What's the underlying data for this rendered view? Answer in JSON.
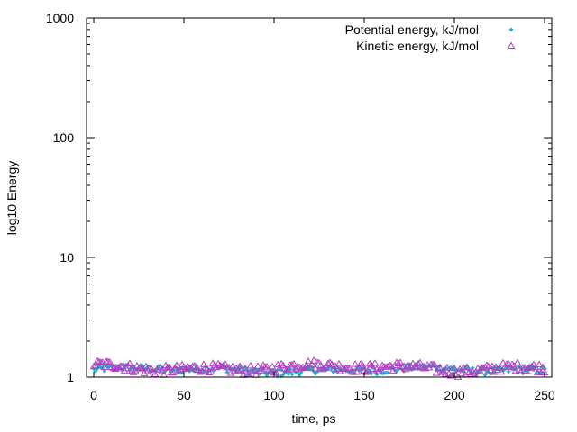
{
  "chart_data": {
    "type": "scatter",
    "title": "",
    "xlabel": "time, ps",
    "ylabel": "log10 Energy",
    "xlim": [
      -4,
      254
    ],
    "ylim": [
      1,
      1000
    ],
    "y_scale": "log",
    "x_ticks": [
      0,
      50,
      100,
      150,
      200,
      250
    ],
    "y_ticks": [
      1,
      10,
      100,
      1000
    ],
    "x_tick_labels": [
      "0",
      "50",
      "100",
      "150",
      "200",
      "250"
    ],
    "y_tick_labels": [
      "1",
      "10",
      "100",
      "1000"
    ],
    "grid": false,
    "legend_position": "top-right",
    "series": [
      {
        "name": "Potential energy, kJ/mol",
        "marker": "diamond",
        "color": "#20b2c8",
        "points_per_ps": 1,
        "x_start": 0,
        "x_end": 250,
        "y_typical_range": [
          1.0,
          1.3
        ]
      },
      {
        "name": "Kinetic energy, kJ/mol",
        "marker": "triangle",
        "color": "#b040c0",
        "points_per_ps": 1,
        "x_start": 0,
        "x_end": 250,
        "y_typical_range": [
          1.0,
          1.4
        ]
      }
    ]
  }
}
